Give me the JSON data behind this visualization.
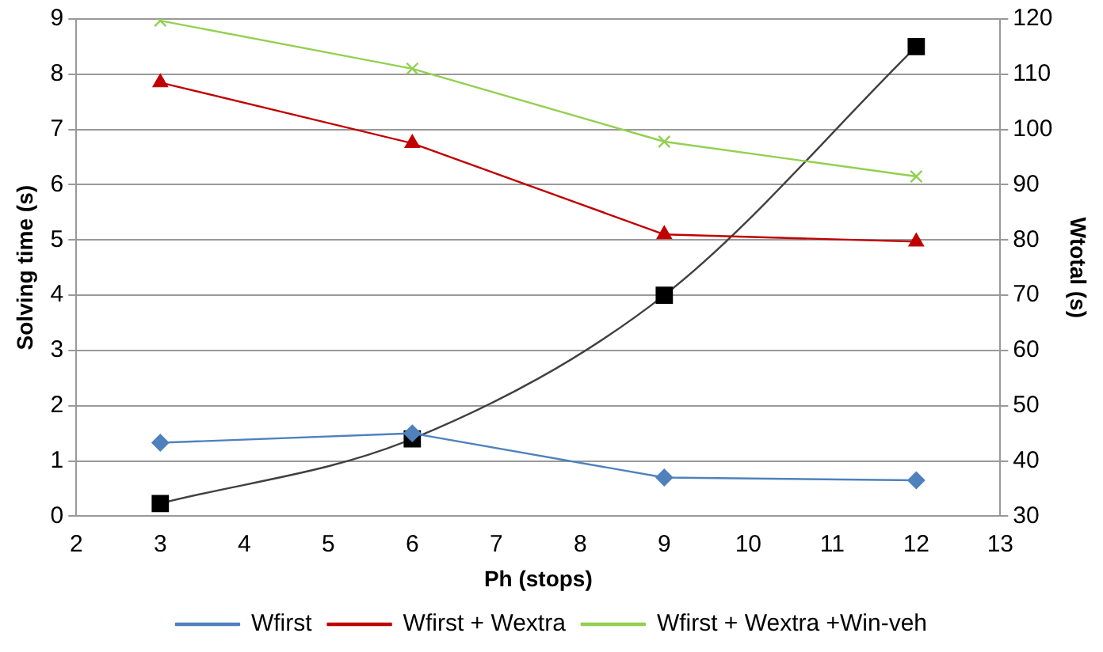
{
  "chart_data": {
    "type": "line",
    "xlabel": "Ph (stops)",
    "ylabel": "Solving time (s)",
    "y2label": "Wtotal (s)",
    "x": [
      3,
      6,
      9,
      12
    ],
    "series": [
      {
        "name": "Wfirst",
        "color": "#4f81bd",
        "marker": "diamond",
        "values": [
          1.33,
          1.5,
          0.7,
          0.65
        ]
      },
      {
        "name": "Wfirst + Wextra",
        "color": "#c00000",
        "marker": "triangle",
        "values": [
          7.85,
          6.75,
          5.1,
          4.97
        ]
      },
      {
        "name": "Wfirst + Wextra +Win-veh",
        "color": "#92d050",
        "marker": "cross",
        "values": [
          8.97,
          8.1,
          6.78,
          6.15
        ]
      },
      {
        "color": "#000000",
        "marker": "square",
        "axis": "y2",
        "values": [
          32.3,
          44,
          70,
          115
        ]
      }
    ],
    "xlim": [
      2,
      13
    ],
    "xticks": [
      2,
      3,
      4,
      5,
      6,
      7,
      8,
      9,
      10,
      11,
      12,
      13
    ],
    "ylim": [
      0,
      9
    ],
    "yticks": [
      0,
      1,
      2,
      3,
      4,
      5,
      6,
      7,
      8,
      9
    ],
    "y2lim": [
      30,
      120
    ],
    "y2ticks": [
      30,
      40,
      50,
      60,
      70,
      80,
      90,
      100,
      110,
      120
    ],
    "grid": "y",
    "legend": "bottom",
    "line_style": "solid"
  }
}
